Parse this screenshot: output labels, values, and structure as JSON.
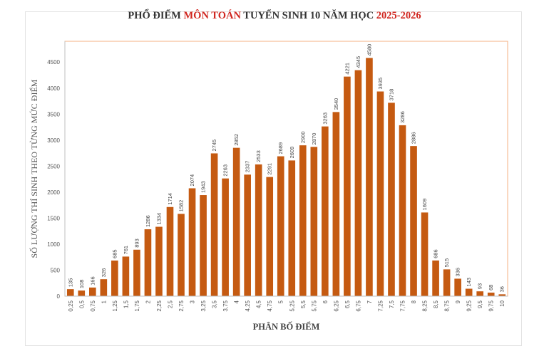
{
  "chart_data": {
    "type": "bar",
    "title_parts": [
      {
        "text": "PHỔ ĐIỂM ",
        "highlight": false
      },
      {
        "text": "MÔN TOÁN",
        "highlight": true
      },
      {
        "text": " TUYỂN SINH 10 NĂM HỌC ",
        "highlight": false
      },
      {
        "text": "2025-2026",
        "highlight": true
      }
    ],
    "xlabel": "PHÂN BỐ ĐIỂM",
    "ylabel": "SỐ LƯỢNG THÍ SINH THEO TỪNG MỨC ĐIỂM",
    "ylim": [
      0,
      4900
    ],
    "yticks": [
      0,
      500,
      1000,
      1500,
      2000,
      2500,
      3000,
      3500,
      4000,
      4500
    ],
    "categories": [
      "0,25",
      "0,5",
      "0,75",
      "1",
      "1,25",
      "1,5",
      "1,75",
      "2",
      "2,25",
      "2,5",
      "2,75",
      "3",
      "3,25",
      "3,5",
      "3,75",
      "4",
      "4,25",
      "4,5",
      "4,75",
      "5",
      "5,25",
      "5,5",
      "5,75",
      "6",
      "6,25",
      "6,5",
      "6,75",
      "7",
      "7,25",
      "7,5",
      "7,75",
      "8",
      "8,25",
      "8,5",
      "8,75",
      "9",
      "9,25",
      "9,5",
      "9,75",
      "10"
    ],
    "values": [
      135,
      108,
      166,
      326,
      685,
      761,
      893,
      1286,
      1334,
      1714,
      1582,
      2074,
      1943,
      2745,
      2263,
      2852,
      2337,
      2533,
      2291,
      2689,
      2609,
      2900,
      2870,
      3263,
      3540,
      4221,
      4345,
      4580,
      3935,
      3718,
      3286,
      2886,
      1609,
      686,
      515,
      336,
      143,
      93,
      68,
      36
    ],
    "data_labels": true,
    "grid": false,
    "legend": "none",
    "colors": {
      "bar": "#c55a11",
      "title_highlight": "#d0261f",
      "plot_border": "#f4b183",
      "axis": "#bfbfbf"
    }
  }
}
